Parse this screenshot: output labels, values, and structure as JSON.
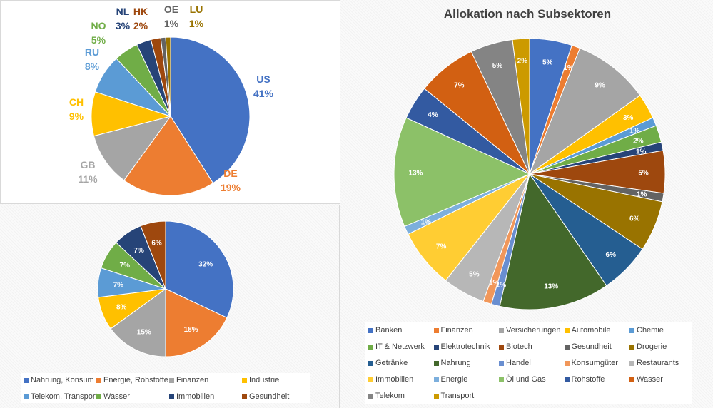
{
  "chart_data": [
    {
      "type": "pie",
      "title": "",
      "categories": [
        "US",
        "DE",
        "GB",
        "CH",
        "RU",
        "NO",
        "NL",
        "HK",
        "OE",
        "LU"
      ],
      "values": [
        41,
        19,
        11,
        9,
        8,
        5,
        3,
        2,
        1,
        1
      ],
      "labels": [
        "41%",
        "19%",
        "11%",
        "9%",
        "8%",
        "5%",
        "3%",
        "2%",
        "1%",
        "1%"
      ],
      "colors": [
        "#4472C4",
        "#ED7D31",
        "#A5A5A5",
        "#FFC000",
        "#5B9BD5",
        "#70AD47",
        "#264478",
        "#9E480E",
        "#636363",
        "#997300"
      ],
      "legend": "none",
      "data_labels": "outside, category name and percent"
    },
    {
      "type": "pie",
      "title": "",
      "categories": [
        "Nahrung, Konsum",
        "Energie, Rohstoffe",
        "Finanzen",
        "Industrie",
        "Telekom, Transport",
        "Wasser",
        "Immobilien",
        "Gesundheit"
      ],
      "values": [
        32,
        18,
        15,
        8,
        7,
        7,
        7,
        6
      ],
      "labels": [
        "32%",
        "18%",
        "15%",
        "8%",
        "7%",
        "7%",
        "7%",
        "6%"
      ],
      "colors": [
        "#4472C4",
        "#ED7D31",
        "#A5A5A5",
        "#FFC000",
        "#5B9BD5",
        "#70AD47",
        "#264478",
        "#9E480E"
      ],
      "legend": "bottom"
    },
    {
      "type": "pie",
      "title": "Allokation nach Subsektoren",
      "categories": [
        "Banken",
        "Finanzen",
        "Versicherungen",
        "Automobile",
        "Chemie",
        "IT & Netzwerk",
        "Elektrotechnik",
        "Biotech",
        "Gesundheit",
        "Drogerie",
        "Getränke",
        "Nahrung",
        "Handel",
        "Konsumgüter",
        "Restaurants",
        "Immobilien",
        "Energie",
        "Öl und Gas",
        "Rohstoffe",
        "Wasser",
        "Telekom",
        "Transport"
      ],
      "values": [
        5,
        1,
        9,
        3,
        1,
        2,
        1,
        5,
        1,
        6,
        6,
        13,
        1,
        1,
        5,
        7,
        1,
        13,
        4,
        7,
        5,
        2
      ],
      "labels": [
        "5%",
        "1%",
        "9%",
        "3%",
        "1%",
        "2%",
        "1%",
        "5%",
        "1%",
        "6%",
        "6%",
        "13%",
        "1%",
        "1%",
        "5%",
        "7%",
        "1%",
        "13%",
        "4%",
        "7%",
        "5%",
        "2%"
      ],
      "colors": [
        "#4472C4",
        "#ED7D31",
        "#A5A5A5",
        "#FFC000",
        "#5B9BD5",
        "#70AD47",
        "#264478",
        "#9E480E",
        "#636363",
        "#997300",
        "#255E91",
        "#43682B",
        "#698ED0",
        "#F1975A",
        "#B7B7B7",
        "#FFCD33",
        "#7CAFDD",
        "#8CC168",
        "#335AA1",
        "#D26012",
        "#848484",
        "#CC9A00"
      ],
      "legend": "bottom"
    }
  ]
}
